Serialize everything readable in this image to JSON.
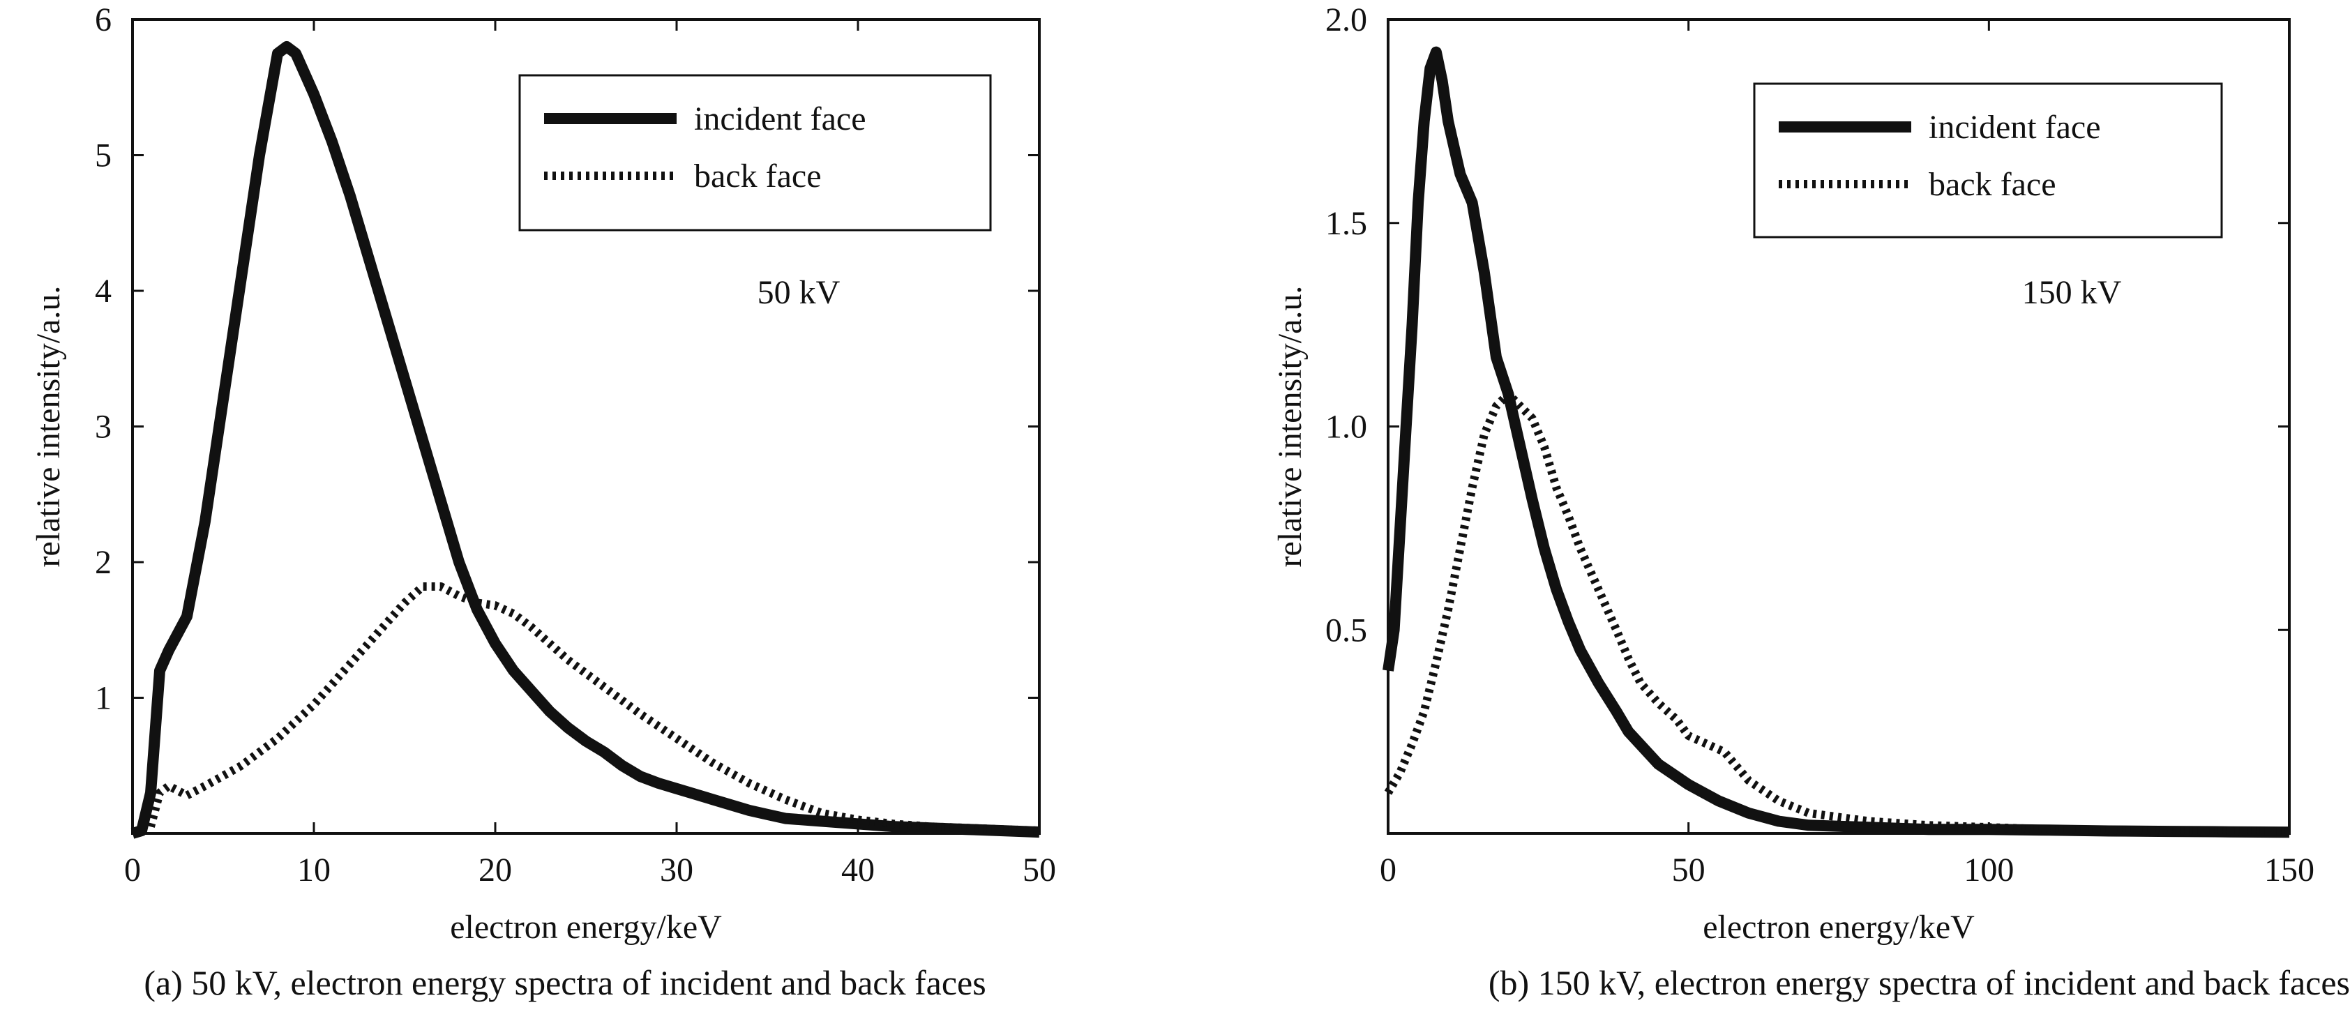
{
  "chart_data": [
    {
      "type": "line",
      "caption": "(a) 50 kV, electron energy spectra of incident and back faces",
      "annotation": "50 kV",
      "xlabel": "electron energy/keV",
      "ylabel": "relative intensity/a.u.",
      "xlim": [
        0,
        50
      ],
      "ylim": [
        0,
        6
      ],
      "xticks": [
        0,
        10,
        20,
        30,
        40,
        50
      ],
      "yticks": [
        1,
        2,
        3,
        4,
        5,
        6
      ],
      "legend_position": "top-right",
      "series": [
        {
          "name": "incident face",
          "style": "solid",
          "x": [
            0,
            0.5,
            1.0,
            1.5,
            2,
            3,
            4,
            5,
            6,
            7,
            8,
            8.5,
            9,
            10,
            11,
            12,
            13,
            14,
            15,
            16,
            17,
            18,
            19,
            20,
            21,
            22,
            23,
            24,
            25,
            26,
            27,
            28,
            29,
            30,
            32,
            34,
            35,
            36,
            38,
            40,
            42,
            44,
            46,
            48,
            50
          ],
          "values": [
            0,
            0.02,
            0.3,
            1.2,
            1.35,
            1.6,
            2.3,
            3.2,
            4.1,
            5.0,
            5.75,
            5.8,
            5.75,
            5.45,
            5.1,
            4.7,
            4.25,
            3.8,
            3.35,
            2.9,
            2.45,
            2.0,
            1.65,
            1.4,
            1.2,
            1.05,
            0.9,
            0.78,
            0.68,
            0.6,
            0.5,
            0.42,
            0.37,
            0.33,
            0.25,
            0.17,
            0.14,
            0.11,
            0.09,
            0.07,
            0.05,
            0.04,
            0.03,
            0.02,
            0.01
          ]
        },
        {
          "name": "back face",
          "style": "dotted",
          "x": [
            1,
            1.5,
            2,
            3,
            4,
            6,
            8,
            10,
            12,
            14,
            15,
            16,
            17,
            18,
            19,
            20,
            21,
            22,
            23,
            24,
            25,
            26,
            28,
            30,
            32,
            34,
            36,
            38,
            40,
            42,
            44,
            46,
            48,
            50
          ],
          "values": [
            0.05,
            0.3,
            0.35,
            0.28,
            0.35,
            0.5,
            0.7,
            0.95,
            1.25,
            1.55,
            1.7,
            1.82,
            1.82,
            1.75,
            1.7,
            1.68,
            1.62,
            1.52,
            1.4,
            1.28,
            1.18,
            1.08,
            0.88,
            0.7,
            0.52,
            0.37,
            0.25,
            0.15,
            0.1,
            0.07,
            0.05,
            0.04,
            0.03,
            0.02
          ]
        }
      ]
    },
    {
      "type": "line",
      "caption": "(b) 150 kV, electron energy spectra of incident and back faces",
      "annotation": "150 kV",
      "xlabel": "electron energy/keV",
      "ylabel": "relative intensity/a.u.",
      "xlim": [
        0,
        150
      ],
      "ylim": [
        0,
        2.0
      ],
      "xticks": [
        0,
        50,
        100,
        150
      ],
      "ytick_labels": [
        "0.5",
        "1.0",
        "1.5",
        "2.0"
      ],
      "yticks": [
        0.5,
        1.0,
        1.5,
        2.0
      ],
      "legend_position": "top-right",
      "series": [
        {
          "name": "incident face",
          "style": "solid",
          "x": [
            0,
            1,
            2,
            3,
            4,
            5,
            6,
            7,
            8,
            9,
            10,
            12,
            14,
            16,
            18,
            20,
            22,
            24,
            26,
            28,
            30,
            32,
            35,
            38,
            40,
            45,
            50,
            55,
            60,
            65,
            70,
            80,
            90,
            100,
            110,
            120,
            130,
            140,
            150
          ],
          "values": [
            0.4,
            0.5,
            0.75,
            1.0,
            1.25,
            1.55,
            1.75,
            1.88,
            1.92,
            1.85,
            1.75,
            1.62,
            1.55,
            1.38,
            1.17,
            1.08,
            0.95,
            0.82,
            0.7,
            0.6,
            0.52,
            0.45,
            0.37,
            0.3,
            0.25,
            0.17,
            0.12,
            0.08,
            0.05,
            0.03,
            0.02,
            0.015,
            0.01,
            0.01,
            0.008,
            0.006,
            0.005,
            0.004,
            0.003
          ]
        },
        {
          "name": "back face",
          "style": "dotted",
          "x": [
            0,
            2,
            4,
            6,
            8,
            10,
            12,
            14,
            16,
            18,
            20,
            22,
            24,
            26,
            28,
            30,
            32,
            35,
            38,
            40,
            42,
            45,
            48,
            50,
            53,
            56,
            60,
            65,
            70,
            80,
            90,
            100,
            110,
            120,
            130,
            140,
            150
          ],
          "values": [
            0.1,
            0.15,
            0.22,
            0.3,
            0.42,
            0.55,
            0.7,
            0.85,
            0.98,
            1.05,
            1.08,
            1.05,
            1.02,
            0.95,
            0.85,
            0.78,
            0.7,
            0.6,
            0.5,
            0.43,
            0.37,
            0.32,
            0.28,
            0.24,
            0.22,
            0.2,
            0.13,
            0.08,
            0.05,
            0.03,
            0.02,
            0.015,
            0.01,
            0.008,
            0.006,
            0.005,
            0.004
          ]
        }
      ]
    }
  ]
}
